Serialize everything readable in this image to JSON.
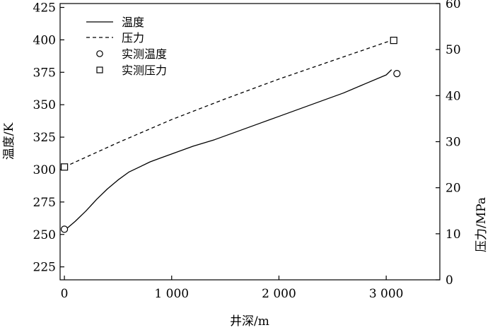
{
  "chart_data": {
    "type": "line",
    "xlabel": "井深/m",
    "ylabel_left": "温度/K",
    "ylabel_right": "压力/MPa",
    "x_range": [
      -40,
      3500
    ],
    "y_left_range": [
      215,
      428
    ],
    "y_right_range": [
      0,
      60
    ],
    "x_ticks": [
      0,
      1000,
      2000,
      3000
    ],
    "x_tick_labels": [
      "0",
      "1 000",
      "2 000",
      "3 000"
    ],
    "y_left_ticks": [
      225,
      250,
      275,
      300,
      325,
      350,
      375,
      400,
      425
    ],
    "y_left_tick_labels": [
      "225",
      "250",
      "275",
      "300",
      "325",
      "350",
      "375",
      "400",
      "425"
    ],
    "y_right_ticks": [
      0,
      10,
      20,
      30,
      40,
      50,
      60
    ],
    "y_right_tick_labels": [
      "0",
      "10",
      "20",
      "30",
      "40",
      "50",
      "60"
    ],
    "grid": false,
    "legend_position": "top-left",
    "series": [
      {
        "name": "温度",
        "style": "solid",
        "axis": "left",
        "x": [
          0,
          100,
          200,
          300,
          400,
          500,
          600,
          700,
          800,
          900,
          1000,
          1200,
          1400,
          1600,
          1800,
          2000,
          2200,
          2400,
          2600,
          2800,
          3000,
          3050
        ],
        "y": [
          253,
          260,
          268,
          277,
          285,
          292,
          298,
          302,
          306,
          309,
          312,
          318,
          323,
          329,
          335,
          341,
          347,
          353,
          359,
          366,
          373,
          377
        ]
      },
      {
        "name": "压力",
        "style": "dashed",
        "axis": "right",
        "x": [
          0,
          500,
          1000,
          1500,
          2000,
          2500,
          3050
        ],
        "y": [
          24.5,
          29.8,
          34.8,
          39.3,
          43.6,
          47.6,
          52.0
        ]
      },
      {
        "name": "实测温度",
        "style": "marker-circle",
        "axis": "left",
        "x": [
          0,
          3100
        ],
        "y": [
          254,
          374
        ]
      },
      {
        "name": "实测压力",
        "style": "marker-square",
        "axis": "right",
        "x": [
          0,
          3070
        ],
        "y": [
          24.5,
          52.0
        ]
      }
    ]
  }
}
